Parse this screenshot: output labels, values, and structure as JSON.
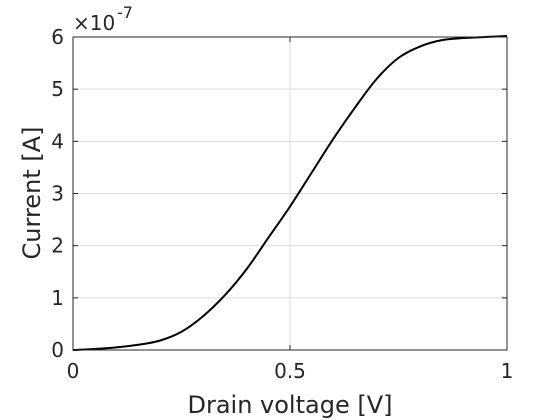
{
  "chart_data": {
    "type": "line",
    "title": "",
    "xlabel": "Drain voltage [V]",
    "ylabel": "Current [A]",
    "y_exponent_base": "×10",
    "y_exponent_power": "-7",
    "xlim": [
      0,
      1
    ],
    "ylim": [
      0,
      6
    ],
    "x_ticks": [
      0,
      0.5,
      1
    ],
    "x_tick_labels": [
      "0",
      "0.5",
      "1"
    ],
    "y_ticks": [
      0,
      1,
      2,
      3,
      4,
      5,
      6
    ],
    "y_tick_labels": [
      "0",
      "1",
      "2",
      "3",
      "4",
      "5",
      "6"
    ],
    "grid": true,
    "line_color": "#000000",
    "series": [
      {
        "x": [
          0.0,
          0.05,
          0.1,
          0.15,
          0.2,
          0.25,
          0.3,
          0.35,
          0.4,
          0.45,
          0.5,
          0.55,
          0.6,
          0.65,
          0.7,
          0.75,
          0.8,
          0.85,
          0.9,
          0.95,
          1.0
        ],
        "values": [
          0.0,
          0.02,
          0.05,
          0.1,
          0.18,
          0.35,
          0.65,
          1.05,
          1.55,
          2.15,
          2.75,
          3.4,
          4.05,
          4.65,
          5.2,
          5.6,
          5.82,
          5.94,
          5.98,
          6.0,
          6.02
        ]
      }
    ]
  }
}
